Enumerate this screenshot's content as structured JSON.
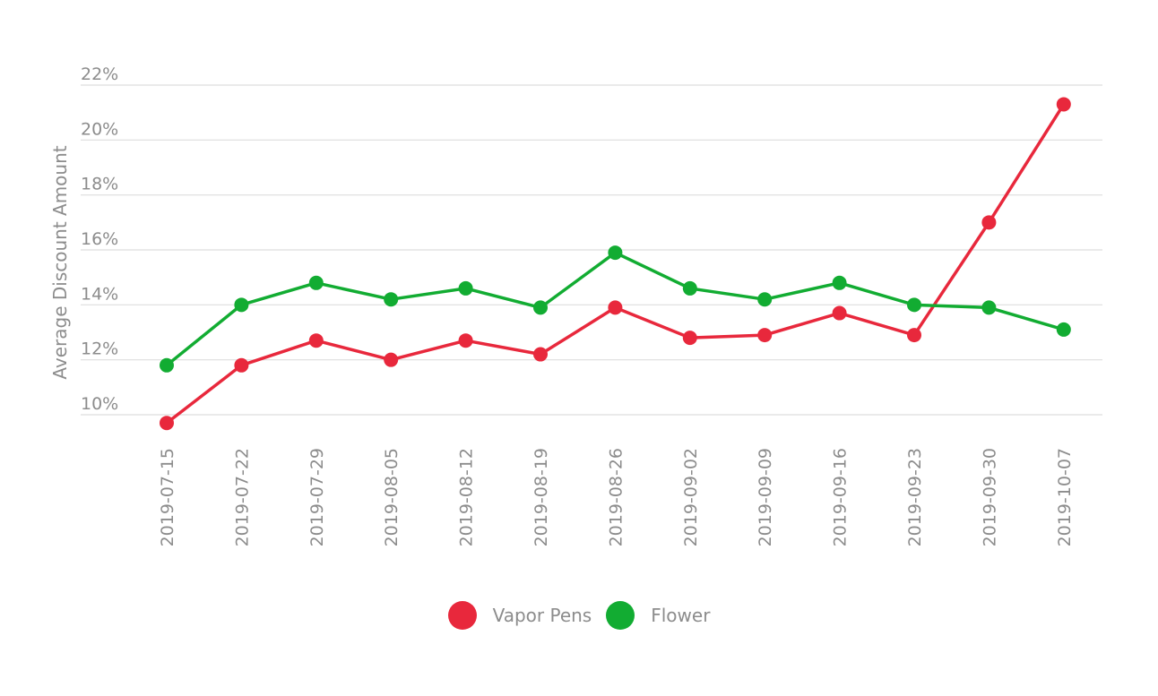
{
  "chart_data": {
    "type": "line",
    "ylabel": "Average Discount Amount",
    "xlabel": "",
    "y_ticks": [
      "10%",
      "12%",
      "14%",
      "16%",
      "18%",
      "20%",
      "22%"
    ],
    "y_tick_values": [
      10,
      12,
      14,
      16,
      18,
      20,
      22
    ],
    "ylim": [
      9.5,
      22
    ],
    "categories": [
      "2019-07-15",
      "2019-07-22",
      "2019-07-29",
      "2019-08-05",
      "2019-08-12",
      "2019-08-19",
      "2019-08-26",
      "2019-09-02",
      "2019-09-09",
      "2019-09-16",
      "2019-09-23",
      "2019-09-30",
      "2019-10-07"
    ],
    "series": [
      {
        "name": "Vapor Pens",
        "color": "#e8283c",
        "values": [
          9.7,
          11.8,
          12.7,
          12.0,
          12.7,
          12.2,
          13.9,
          12.8,
          12.9,
          13.7,
          12.9,
          17.0,
          21.3
        ]
      },
      {
        "name": "Flower",
        "color": "#12ac32",
        "values": [
          11.8,
          14.0,
          14.8,
          14.2,
          14.6,
          13.9,
          15.9,
          14.6,
          14.2,
          14.8,
          14.0,
          13.9,
          13.1
        ]
      }
    ],
    "grid": true,
    "legend_position": "bottom"
  }
}
